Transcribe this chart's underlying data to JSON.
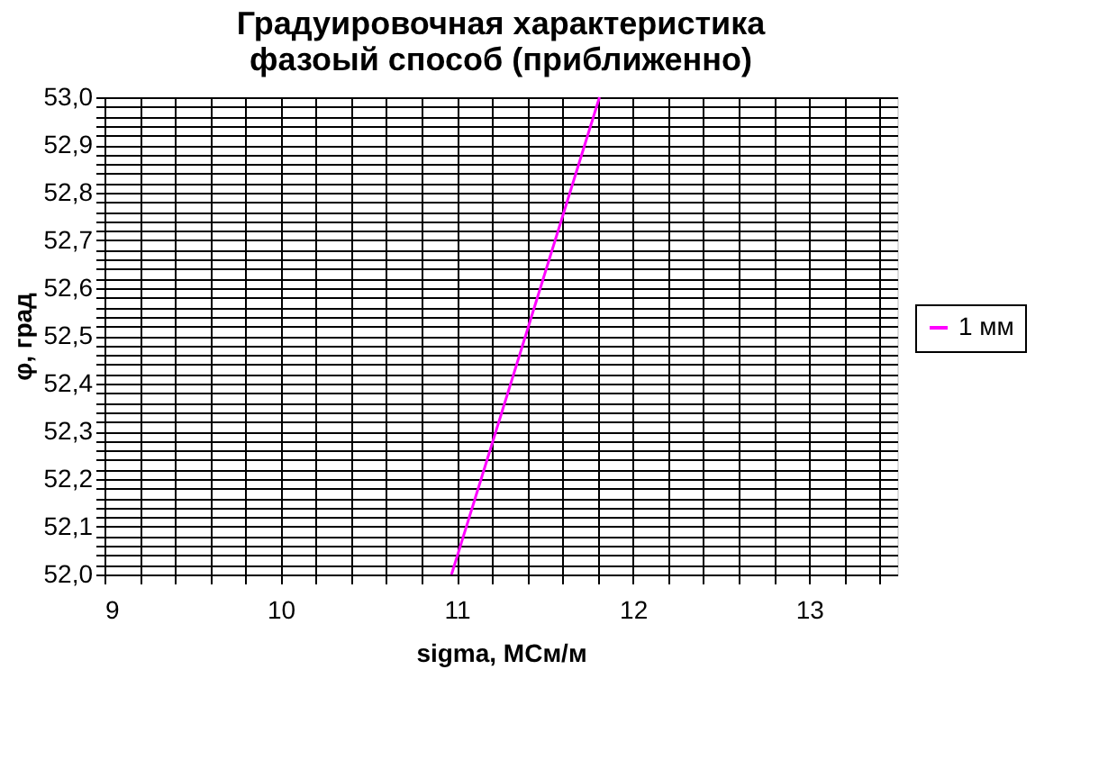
{
  "chart_data": {
    "type": "line",
    "title": "Градуировочная характеристика\nфазоый способ (приближенно)",
    "xlabel": "sigma, МСм/м",
    "ylabel": "φ, град",
    "x": [
      10.97,
      11.81
    ],
    "series": [
      {
        "name": "1 мм",
        "color": "#ff00ff",
        "values": [
          52.0,
          53.0
        ]
      }
    ],
    "xlim": [
      9,
      13.5
    ],
    "ylim": [
      52.0,
      53.0
    ],
    "xticks": [
      9,
      {
        "value": 9.2,
        "label": null
      },
      {
        "value": 9.4,
        "label": null
      },
      {
        "value": 9.6,
        "label": null
      },
      {
        "value": 9.8,
        "label": null
      },
      10,
      {
        "value": 10.2,
        "label": null
      },
      {
        "value": 10.4,
        "label": null
      },
      {
        "value": 10.6,
        "label": null
      },
      {
        "value": 10.8,
        "label": null
      },
      11,
      {
        "value": 11.2,
        "label": null
      },
      {
        "value": 11.4,
        "label": null
      },
      {
        "value": 11.6,
        "label": null
      },
      {
        "value": 11.8,
        "label": null
      },
      12,
      {
        "value": 12.2,
        "label": null
      },
      {
        "value": 12.4,
        "label": null
      },
      {
        "value": 12.6,
        "label": null
      },
      {
        "value": 12.8,
        "label": null
      },
      13,
      {
        "value": 13.2,
        "label": null
      },
      {
        "value": 13.4,
        "label": null
      }
    ],
    "yticks": [
      {
        "value": 52.0,
        "label": "52,0"
      },
      {
        "value": 52.02,
        "label": null
      },
      {
        "value": 52.04,
        "label": null
      },
      {
        "value": 52.06,
        "label": null
      },
      {
        "value": 52.08,
        "label": null
      },
      {
        "value": 52.1,
        "label": "52,1"
      },
      {
        "value": 52.12,
        "label": null
      },
      {
        "value": 52.14,
        "label": null
      },
      {
        "value": 52.16,
        "label": null
      },
      {
        "value": 52.18,
        "label": null
      },
      {
        "value": 52.2,
        "label": "52,2"
      },
      {
        "value": 52.22,
        "label": null
      },
      {
        "value": 52.24,
        "label": null
      },
      {
        "value": 52.26,
        "label": null
      },
      {
        "value": 52.28,
        "label": null
      },
      {
        "value": 52.3,
        "label": "52,3"
      },
      {
        "value": 52.32,
        "label": null
      },
      {
        "value": 52.34,
        "label": null
      },
      {
        "value": 52.36,
        "label": null
      },
      {
        "value": 52.38,
        "label": null
      },
      {
        "value": 52.4,
        "label": "52,4"
      },
      {
        "value": 52.42,
        "label": null
      },
      {
        "value": 52.44,
        "label": null
      },
      {
        "value": 52.46,
        "label": null
      },
      {
        "value": 52.48,
        "label": null
      },
      {
        "value": 52.5,
        "label": "52,5"
      },
      {
        "value": 52.52,
        "label": null
      },
      {
        "value": 52.54,
        "label": null
      },
      {
        "value": 52.56,
        "label": null
      },
      {
        "value": 52.58,
        "label": null
      },
      {
        "value": 52.6,
        "label": "52,6"
      },
      {
        "value": 52.62,
        "label": null
      },
      {
        "value": 52.64,
        "label": null
      },
      {
        "value": 52.66,
        "label": null
      },
      {
        "value": 52.68,
        "label": null
      },
      {
        "value": 52.7,
        "label": "52,7"
      },
      {
        "value": 52.72,
        "label": null
      },
      {
        "value": 52.74,
        "label": null
      },
      {
        "value": 52.76,
        "label": null
      },
      {
        "value": 52.78,
        "label": null
      },
      {
        "value": 52.8,
        "label": "52,8"
      },
      {
        "value": 52.82,
        "label": null
      },
      {
        "value": 52.84,
        "label": null
      },
      {
        "value": 52.86,
        "label": null
      },
      {
        "value": 52.88,
        "label": null
      },
      {
        "value": 52.9,
        "label": "52,9"
      },
      {
        "value": 52.92,
        "label": null
      },
      {
        "value": 52.94,
        "label": null
      },
      {
        "value": 52.96,
        "label": null
      },
      {
        "value": 52.98,
        "label": null
      },
      {
        "value": 53.0,
        "label": "53,0"
      }
    ],
    "grid": true,
    "legend": "right",
    "line_style": "solid",
    "marker": "none"
  }
}
